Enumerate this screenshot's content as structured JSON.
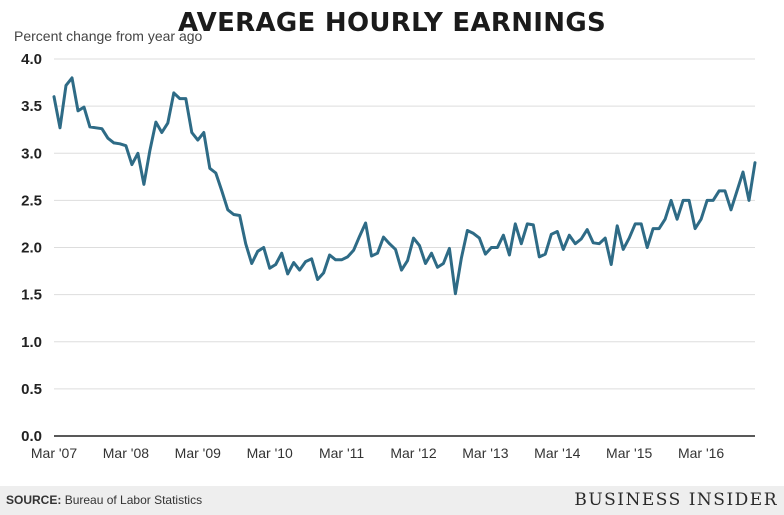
{
  "chart_data": {
    "type": "line",
    "title": "AVERAGE HOURLY EARNINGS",
    "ylabel": "Percent change from year ago",
    "xlabel": "",
    "ylim": [
      0,
      4.0
    ],
    "yticks": [
      "0.0",
      "0.5",
      "1.0",
      "1.5",
      "2.0",
      "2.5",
      "3.0",
      "3.5",
      "4.0"
    ],
    "xticks": [
      {
        "label": "Mar '07",
        "index": 0
      },
      {
        "label": "Mar '08",
        "index": 12
      },
      {
        "label": "Mar '09",
        "index": 24
      },
      {
        "label": "Mar '10",
        "index": 36
      },
      {
        "label": "Mar '11",
        "index": 48
      },
      {
        "label": "Mar '12",
        "index": 60
      },
      {
        "label": "Mar '13",
        "index": 72
      },
      {
        "label": "Mar '14",
        "index": 84
      },
      {
        "label": "Mar '15",
        "index": 96
      },
      {
        "label": "Mar '16",
        "index": 108
      }
    ],
    "grid": "horizontal",
    "line_color": "#2e6b86",
    "series": [
      {
        "values": [
          3.6,
          3.27,
          3.72,
          3.8,
          3.45,
          3.49,
          3.28,
          3.27,
          3.26,
          3.16,
          3.11,
          3.1,
          3.08,
          2.88,
          3.0,
          2.67,
          3.03,
          3.33,
          3.22,
          3.32,
          3.64,
          3.58,
          3.58,
          3.22,
          3.14,
          3.22,
          2.84,
          2.79,
          2.6,
          2.4,
          2.35,
          2.34,
          2.04,
          1.83,
          1.96,
          2.0,
          1.78,
          1.82,
          1.94,
          1.72,
          1.84,
          1.76,
          1.85,
          1.88,
          1.66,
          1.73,
          1.92,
          1.87,
          1.87,
          1.9,
          1.97,
          2.12,
          2.26,
          1.91,
          1.94,
          2.11,
          2.04,
          1.98,
          1.76,
          1.86,
          2.1,
          2.02,
          1.83,
          1.94,
          1.79,
          1.83,
          1.99,
          1.51,
          1.89,
          2.18,
          2.15,
          2.1,
          1.93,
          2.0,
          2.0,
          2.13,
          1.92,
          2.25,
          2.04,
          2.25,
          2.24,
          1.9,
          1.93,
          2.14,
          2.17,
          1.98,
          2.13,
          2.04,
          2.09,
          2.19,
          2.05,
          2.04,
          2.1,
          1.82,
          2.23,
          1.98,
          2.1,
          2.25,
          2.25,
          2.0,
          2.2,
          2.2,
          2.3,
          2.5,
          2.3,
          2.5,
          2.5,
          2.2,
          2.3,
          2.5,
          2.5,
          2.6,
          2.6,
          2.4,
          2.6,
          2.8,
          2.5,
          2.9
        ]
      }
    ]
  },
  "source_label": "SOURCE:",
  "source_text": "Bureau of Labor Statistics",
  "brand": "BUSINESS INSIDER"
}
